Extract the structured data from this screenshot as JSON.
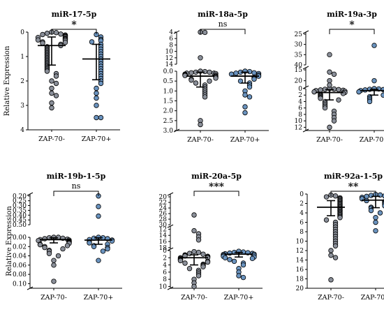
{
  "colors": {
    "neg_fill": "#8a8f99",
    "pos_fill": "#6a93bf",
    "stroke": "#000000"
  },
  "chart_data": [
    {
      "type": "scatter",
      "title": "miR-17-5p",
      "ylabel": "Relative Expression",
      "categories": [
        "ZAP-70-",
        "ZAP-70+"
      ],
      "significance": "*",
      "ylim": [
        0,
        4
      ],
      "yticks": [
        "0",
        "1",
        "2",
        "3",
        "4"
      ],
      "breaks": [],
      "series": [
        {
          "values": [
            0.0,
            0.02,
            0.05,
            0.08,
            0.1,
            0.12,
            0.15,
            0.18,
            0.2,
            0.22,
            0.25,
            0.28,
            0.3,
            0.32,
            0.35,
            0.4,
            0.42,
            0.45,
            0.5,
            0.55,
            0.6,
            0.65,
            0.7,
            0.75,
            0.8,
            0.85,
            0.9,
            0.95,
            1.0,
            1.05,
            1.1,
            1.15,
            1.2,
            1.25,
            1.3,
            1.35,
            1.4,
            1.45,
            1.5,
            1.55,
            1.6,
            1.7,
            1.8,
            2.0,
            2.1,
            2.3,
            2.5,
            2.6,
            2.9,
            3.1
          ],
          "median": 0.55,
          "q1": 0.2,
          "q3": 1.35
        },
        {
          "values": [
            0.1,
            0.2,
            0.3,
            0.35,
            0.4,
            0.5,
            0.6,
            0.7,
            0.8,
            0.9,
            1.0,
            1.1,
            1.2,
            1.3,
            1.4,
            1.5,
            1.6,
            1.7,
            1.8,
            1.9,
            2.0,
            2.1,
            2.3,
            2.5,
            2.7,
            3.0,
            3.5,
            3.5
          ],
          "median": 1.1,
          "q1": 0.5,
          "q3": 1.95
        }
      ]
    },
    {
      "type": "scatter",
      "title": "miR-18a-5p",
      "ylabel": "",
      "categories": [
        "ZAP-70-",
        "ZAP-70+"
      ],
      "significance": "ns",
      "ylim": [
        0,
        14
      ],
      "yticks": [
        "0.0",
        "0.5",
        "1.0",
        "1.5",
        "2.0",
        "2.5",
        "3.0",
        "4",
        "6",
        "8",
        "10",
        "12",
        "14"
      ],
      "breaks": [
        {
          "from": 0,
          "to": 3,
          "step": 0.5
        },
        {
          "from": 4,
          "to": 14,
          "step": 2
        }
      ],
      "series": [
        {
          "values": [
            0.0,
            0.02,
            0.05,
            0.05,
            0.08,
            0.1,
            0.1,
            0.12,
            0.15,
            0.18,
            0.2,
            0.2,
            0.22,
            0.25,
            0.28,
            0.3,
            0.35,
            0.4,
            0.45,
            0.5,
            0.6,
            0.7,
            0.8,
            0.9,
            1.0,
            1.1,
            1.2,
            1.3,
            2.5,
            2.7,
            4.0,
            4.1,
            12.0
          ],
          "median": 0.25,
          "q1": 0.05,
          "q3": 0.8
        },
        {
          "values": [
            0.0,
            0.02,
            0.05,
            0.08,
            0.1,
            0.12,
            0.15,
            0.2,
            0.25,
            0.3,
            0.35,
            0.4,
            0.5,
            0.6,
            0.7,
            0.8,
            1.0,
            1.2,
            1.3,
            1.8,
            2.1
          ],
          "median": 0.25,
          "q1": 0.05,
          "q3": 0.6
        }
      ]
    },
    {
      "type": "scatter",
      "title": "miR-19a-3p",
      "ylabel": "",
      "categories": [
        "ZAP-70-",
        "ZAP-70+"
      ],
      "significance": "*",
      "ylim": [
        0,
        40
      ],
      "yticks": [
        "0",
        "2",
        "4",
        "6",
        "8",
        "10",
        "12",
        "15",
        "20",
        "25",
        "30",
        "35",
        "40"
      ],
      "breaks": [
        {
          "from": 0,
          "to": 13,
          "step": 2
        },
        {
          "from": 14,
          "to": 23,
          "step": 5
        },
        {
          "from": 24,
          "to": 40,
          "step": 5
        }
      ],
      "series": [
        {
          "values": [
            0.0,
            0.1,
            0.2,
            0.3,
            0.4,
            0.5,
            0.6,
            0.8,
            1.0,
            1.2,
            1.5,
            1.8,
            2.0,
            2.2,
            2.5,
            2.8,
            3.0,
            3.5,
            4.0,
            4.5,
            5.0,
            5.5,
            6.0,
            7.0,
            8.0,
            9.0,
            10.0,
            12.0,
            16.0,
            17.0,
            20.0,
            22.0,
            35.0
          ],
          "median": 1.2,
          "q1": 0.3,
          "q3": 3.5
        },
        {
          "values": [
            0.0,
            0.1,
            0.2,
            0.3,
            0.4,
            0.5,
            0.6,
            0.8,
            1.0,
            1.2,
            1.5,
            2.0,
            2.5,
            3.0,
            3.5,
            4.0,
            20.0,
            30.5
          ],
          "median": 0.6,
          "q1": 0.2,
          "q3": 2.0
        }
      ]
    },
    {
      "type": "scatter",
      "title": "miR-19b-1-5p",
      "ylabel": "Relative Expression",
      "categories": [
        "ZAP-70-",
        "ZAP-70+"
      ],
      "significance": "ns",
      "ylim": [
        0,
        0.5
      ],
      "yticks": [
        "0.00",
        "0.02",
        "0.04",
        "0.06",
        "0.08",
        "0.10",
        "0.20",
        "0.25",
        "0.30",
        "0.35",
        "0.40",
        "0.45",
        "0.50"
      ],
      "breaks": [
        {
          "from": 0,
          "to": 0.11,
          "step": 0.02
        },
        {
          "from": 0.18,
          "to": 0.5,
          "step": 0.05
        }
      ],
      "series": [
        {
          "values": [
            0.0,
            0.0,
            0.001,
            0.002,
            0.003,
            0.004,
            0.005,
            0.006,
            0.007,
            0.008,
            0.009,
            0.01,
            0.011,
            0.012,
            0.013,
            0.015,
            0.016,
            0.018,
            0.02,
            0.022,
            0.025,
            0.028,
            0.03,
            0.035,
            0.04,
            0.05,
            0.06,
            0.095
          ],
          "median": 0.005,
          "q1": 0.001,
          "q3": 0.012
        },
        {
          "values": [
            0.0,
            0.001,
            0.002,
            0.003,
            0.005,
            0.006,
            0.008,
            0.01,
            0.012,
            0.015,
            0.018,
            0.02,
            0.022,
            0.025,
            0.03,
            0.05,
            0.2,
            0.31,
            0.41
          ],
          "median": 0.006,
          "q1": 0.001,
          "q3": 0.015
        }
      ]
    },
    {
      "type": "scatter",
      "title": "miR-20a-5p",
      "ylabel": "",
      "categories": [
        "ZAP-70-",
        "ZAP-70+"
      ],
      "significance": "***",
      "ylim": [
        0,
        30
      ],
      "yticks": [
        "0",
        "2",
        "4",
        "6",
        "8",
        "10",
        "12",
        "14",
        "16",
        "18",
        "20",
        "22",
        "24",
        "26",
        "28",
        "30"
      ],
      "breaks": [
        {
          "from": 0,
          "to": 10.5,
          "step": 2
        },
        {
          "from": 11,
          "to": 18.5,
          "step": 2
        },
        {
          "from": 19,
          "to": 30,
          "step": 2
        }
      ],
      "series": [
        {
          "values": [
            0.3,
            0.5,
            0.8,
            1.0,
            1.2,
            1.4,
            1.5,
            1.6,
            1.8,
            2.0,
            2.0,
            2.2,
            2.4,
            2.5,
            2.7,
            2.8,
            3.0,
            3.2,
            3.5,
            3.8,
            4.0,
            4.2,
            4.5,
            5.0,
            5.5,
            6.0,
            6.5,
            7.0,
            8.0,
            9.0,
            10.0,
            12.5,
            13.5,
            14.5,
            15.5,
            26.5
          ],
          "median": 2.0,
          "q1": 1.2,
          "q3": 4.0
        },
        {
          "values": [
            0.2,
            0.4,
            0.5,
            0.6,
            0.7,
            0.8,
            0.9,
            1.0,
            1.1,
            1.2,
            1.3,
            1.5,
            1.6,
            1.8,
            2.0,
            2.2,
            2.5,
            3.0,
            3.5,
            4.0,
            5.0,
            6.0,
            7.0,
            7.5
          ],
          "median": 1.0,
          "q1": 0.5,
          "q3": 1.8
        }
      ]
    },
    {
      "type": "scatter",
      "title": "miR-92a-1-5p",
      "ylabel": "",
      "categories": [
        "ZAP-70-",
        "ZAP-70+"
      ],
      "significance": "**",
      "ylim": [
        0,
        20
      ],
      "yticks": [
        "0",
        "2",
        "4",
        "6",
        "8",
        "10",
        "12",
        "14",
        "16",
        "18",
        "20"
      ],
      "breaks": [],
      "series": [
        {
          "values": [
            0.2,
            0.4,
            0.6,
            0.8,
            1.0,
            1.2,
            1.4,
            1.6,
            1.8,
            2.0,
            2.2,
            2.4,
            2.6,
            2.8,
            3.0,
            3.2,
            3.4,
            3.6,
            3.8,
            4.0,
            4.2,
            4.4,
            4.6,
            4.8,
            5.0,
            5.5,
            6.0,
            6.5,
            7.0,
            7.5,
            8.0,
            8.5,
            9.0,
            9.5,
            10.0,
            10.5,
            11.0,
            12.0,
            13.0,
            13.5,
            18.2
          ],
          "median": 2.8,
          "q1": 1.4,
          "q3": 4.6
        },
        {
          "values": [
            0.1,
            0.2,
            0.3,
            0.4,
            0.5,
            0.6,
            0.7,
            0.8,
            1.0,
            1.2,
            1.4,
            1.6,
            1.8,
            2.0,
            2.2,
            2.5,
            2.8,
            3.0,
            3.5,
            4.0,
            5.0,
            6.0,
            7.8
          ],
          "median": 1.3,
          "q1": 0.5,
          "q3": 2.9
        }
      ]
    }
  ]
}
